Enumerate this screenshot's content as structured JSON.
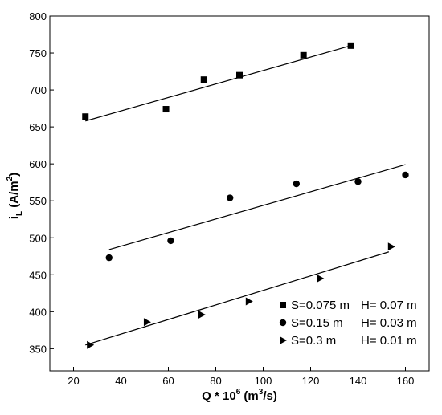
{
  "chart_data": {
    "type": "scatter",
    "xlabel": "Q * 10",
    "xlabel_sup": "6",
    "xlabel_unit_pre": " (m",
    "xlabel_unit_sup": "3",
    "xlabel_unit_post": "/s)",
    "ylabel": "i",
    "ylabel_sub": "L",
    "ylabel_unit": " (A/m",
    "ylabel_unit_sup": "2",
    "ylabel_unit_post": ")",
    "xlim": [
      10,
      170
    ],
    "ylim": [
      320,
      800
    ],
    "xticks": [
      20,
      40,
      60,
      80,
      100,
      120,
      140,
      160
    ],
    "yticks": [
      350,
      400,
      450,
      500,
      550,
      600,
      650,
      700,
      750,
      800
    ],
    "grid": false,
    "legend_position": "lower-right",
    "series": [
      {
        "name": "S=0.075 m",
        "name_extra": "H= 0.07 m",
        "marker": "square",
        "x": [
          25,
          59,
          75,
          90,
          117,
          137
        ],
        "y": [
          664,
          674,
          714,
          720,
          747,
          760
        ],
        "fit": {
          "x": [
            25,
            137
          ],
          "y": [
            658,
            760
          ]
        }
      },
      {
        "name": "S=0.15 m",
        "name_extra": "H= 0.03 m",
        "marker": "circle",
        "x": [
          35,
          61,
          86,
          114,
          140,
          160
        ],
        "y": [
          473,
          496,
          554,
          573,
          576,
          585
        ],
        "fit": {
          "x": [
            35,
            160
          ],
          "y": [
            484,
            599
          ]
        }
      },
      {
        "name": "S=0.3 m",
        "name_extra": "H= 0.01 m",
        "marker": "triangle-right",
        "x": [
          27,
          51,
          74,
          94,
          124,
          154
        ],
        "y": [
          355,
          386,
          396,
          414,
          445,
          488
        ],
        "fit": {
          "x": [
            25,
            153
          ],
          "y": [
            355,
            481
          ]
        }
      }
    ]
  }
}
